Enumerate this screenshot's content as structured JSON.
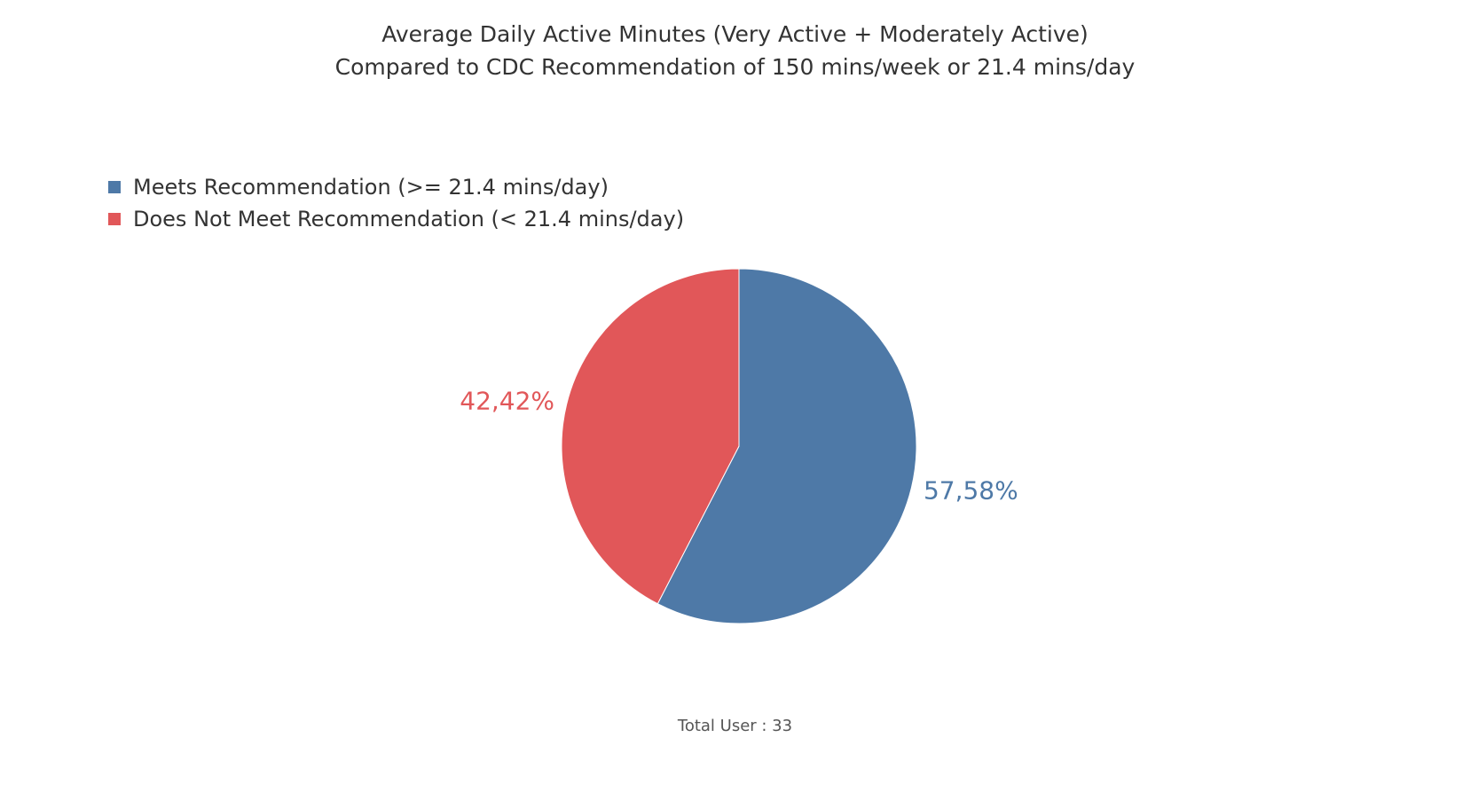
{
  "colors": {
    "meets": "#4e79a7",
    "does_not_meet": "#e15759",
    "text": "#333333"
  },
  "chart_data": {
    "type": "pie",
    "title": "Average Daily Active Minutes (Very Active + Moderately Active)",
    "subtitle": "Compared to CDC Recommendation of 150 mins/week or 21.4 mins/day",
    "legend_position": "top-left",
    "slices": [
      {
        "name": "Meets Recommendation (>= 21.4 mins/day)",
        "value": 57.58,
        "label": "57,58%",
        "color": "#4e79a7"
      },
      {
        "name": "Does Not Meet Recommendation (< 21.4 mins/day)",
        "value": 42.42,
        "label": "42,42%",
        "color": "#e15759"
      }
    ]
  },
  "footer": {
    "total_users": "Total User : 33"
  }
}
